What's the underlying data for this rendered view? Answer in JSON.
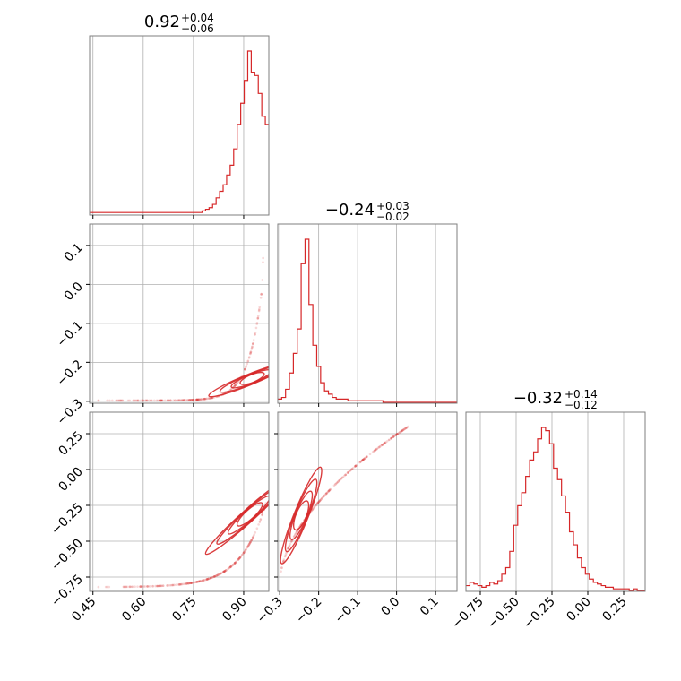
{
  "color": "#d62728",
  "titles": [
    {
      "value": "0.92",
      "plus": "+0.04",
      "minus": "−0.06"
    },
    {
      "value": "−0.24",
      "plus": "+0.03",
      "minus": "−0.02"
    },
    {
      "value": "−0.32",
      "plus": "+0.14",
      "minus": "−0.12"
    }
  ],
  "chart_data": {
    "type": "corner",
    "parameters": [
      {
        "range": [
          0.44,
          0.975
        ],
        "ticks": [
          0.45,
          0.6,
          0.75,
          0.9
        ],
        "tick_labels": [
          "0.45",
          "0.60",
          "0.75",
          "0.90"
        ]
      },
      {
        "range": [
          -0.305,
          0.155
        ],
        "ticks": [
          -0.3,
          -0.2,
          -0.1,
          0.0,
          0.1
        ],
        "tick_labels": [
          "−0.3",
          "−0.2",
          "−0.1",
          "0.0",
          "0.1"
        ]
      },
      {
        "range": [
          -0.85,
          0.4
        ],
        "ticks": [
          -0.75,
          -0.5,
          -0.25,
          0.0,
          0.25
        ],
        "tick_labels": [
          "−0.75",
          "−0.50",
          "−0.25",
          "0.00",
          "0.25"
        ]
      }
    ],
    "histograms": [
      {
        "edges_range": [
          0.44,
          0.975
        ],
        "counts": [
          1,
          1,
          1,
          1,
          1,
          1,
          1,
          1,
          1,
          1,
          1,
          1,
          1,
          1,
          1,
          1,
          1,
          1,
          1,
          1,
          1,
          1,
          1,
          1,
          1,
          1,
          1,
          1,
          1,
          1,
          1,
          1,
          2,
          3,
          4,
          6,
          10,
          14,
          18,
          24,
          30,
          40,
          55,
          68,
          82,
          100,
          87,
          85,
          74,
          60,
          55
        ]
      },
      {
        "edges_range": [
          -0.305,
          0.155
        ],
        "counts": [
          2,
          3,
          8,
          18,
          30,
          45,
          85,
          100,
          60,
          35,
          22,
          12,
          7,
          5,
          3,
          2,
          2,
          2,
          1,
          1,
          1,
          1,
          1,
          1,
          1,
          1,
          1,
          0,
          0,
          0,
          0,
          0,
          0,
          0,
          0,
          0,
          0,
          0,
          0,
          0,
          0,
          0,
          0,
          0,
          0,
          0
        ]
      },
      {
        "edges_range": [
          -0.85,
          0.4
        ],
        "counts": [
          3,
          5,
          4,
          3,
          2,
          3,
          5,
          4,
          6,
          10,
          14,
          24,
          40,
          52,
          60,
          70,
          80,
          85,
          93,
          100,
          98,
          90,
          75,
          68,
          58,
          48,
          36,
          28,
          20,
          14,
          10,
          7,
          5,
          4,
          3,
          2,
          2,
          1,
          1,
          1,
          1,
          0,
          1,
          0,
          0
        ]
      }
    ],
    "scatter_pairs": [
      {
        "x_param": 0,
        "y_param": 1
      },
      {
        "x_param": 0,
        "y_param": 2
      },
      {
        "x_param": 1,
        "y_param": 2
      }
    ],
    "grid": true
  }
}
